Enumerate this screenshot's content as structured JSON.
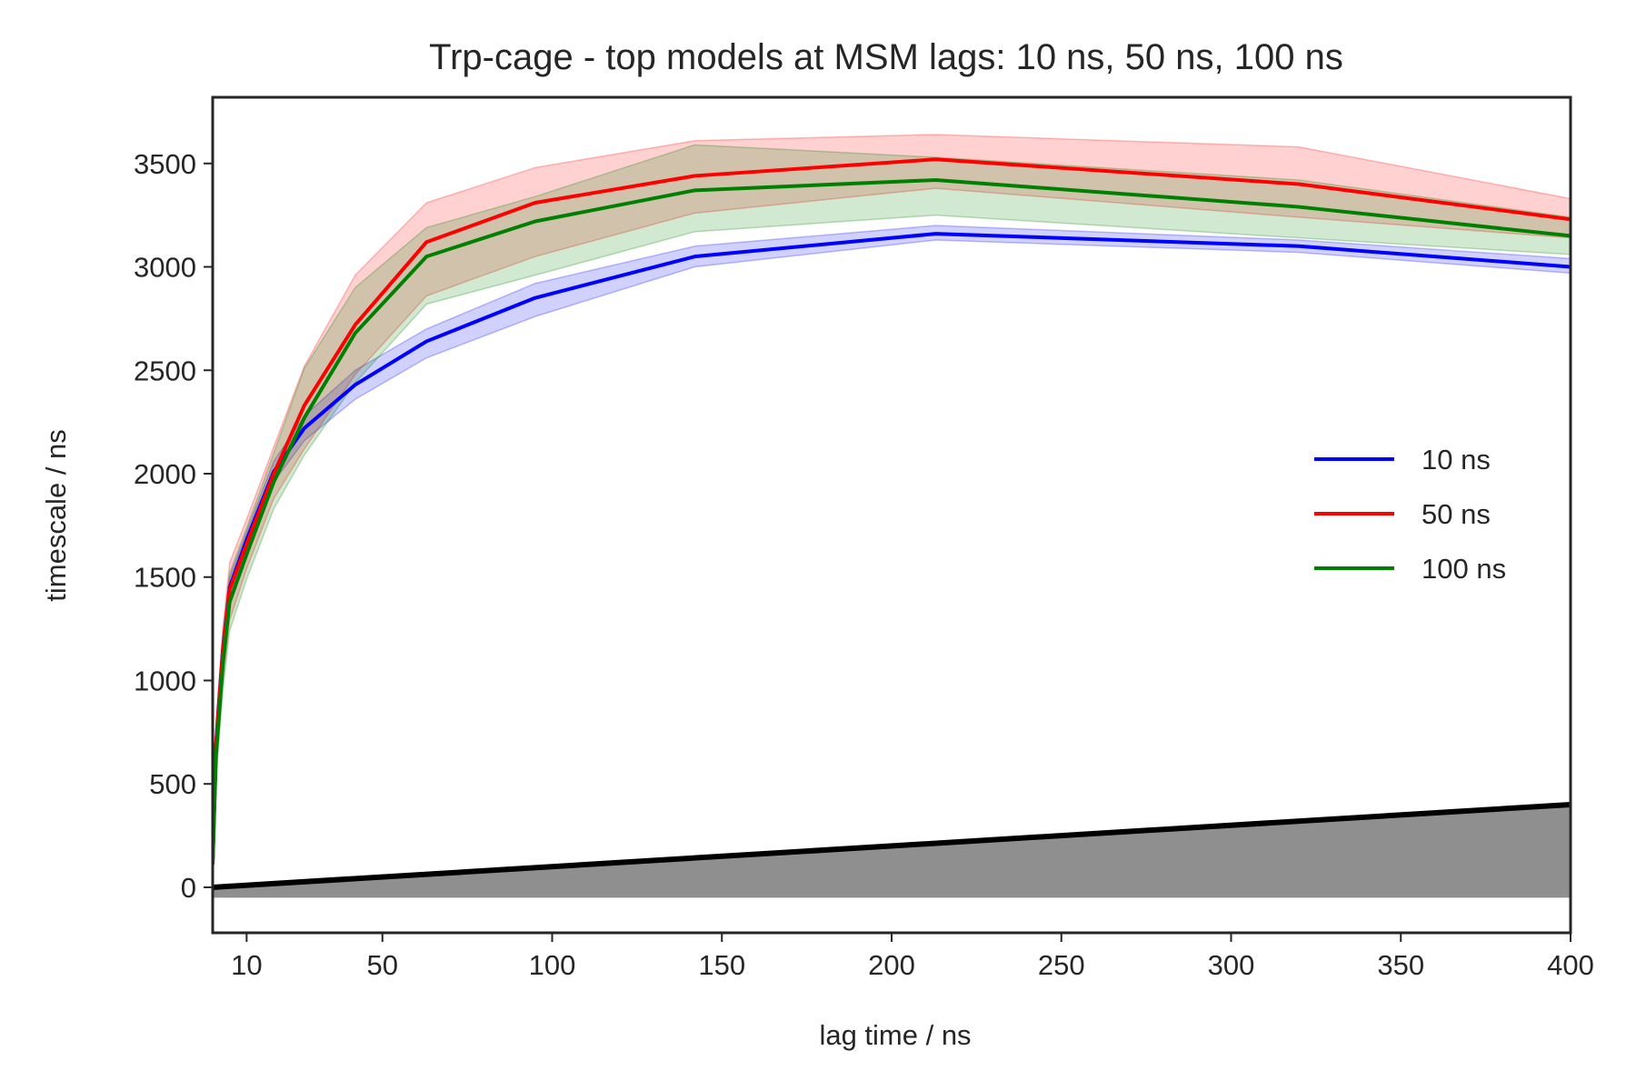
{
  "chart_data": {
    "type": "line",
    "title": "Trp-cage - top models at MSM lags: 10 ns, 50 ns, 100 ns",
    "xlabel": "lag time / ns",
    "ylabel": "timescale / ns",
    "xlim": [
      0,
      400
    ],
    "ylim": [
      -220,
      3820
    ],
    "xticks": [
      10,
      50,
      100,
      150,
      200,
      250,
      300,
      350,
      400
    ],
    "yticks": [
      0,
      500,
      1000,
      1500,
      2000,
      2500,
      3000,
      3500
    ],
    "grid": false,
    "legend_position": "right",
    "x": [
      0,
      1,
      3,
      5,
      10,
      18,
      27,
      42,
      63,
      95,
      142,
      213,
      320,
      400
    ],
    "series": [
      {
        "name": "10 ns",
        "color": "#0000ff",
        "values": [
          120,
          700,
          1150,
          1450,
          1680,
          2010,
          2220,
          2430,
          2640,
          2850,
          3050,
          3160,
          3100,
          3000
        ],
        "lower": [
          110,
          660,
          1100,
          1400,
          1630,
          1960,
          2160,
          2360,
          2560,
          2760,
          3000,
          3130,
          3070,
          2970
        ],
        "upper": [
          130,
          740,
          1200,
          1500,
          1720,
          2060,
          2280,
          2500,
          2700,
          2920,
          3100,
          3200,
          3130,
          3040
        ]
      },
      {
        "name": "50 ns",
        "color": "#ff0000",
        "values": [
          120,
          690,
          1140,
          1440,
          1660,
          2000,
          2330,
          2720,
          3120,
          3310,
          3440,
          3520,
          3400,
          3230
        ],
        "lower": [
          100,
          560,
          990,
          1290,
          1540,
          1880,
          2120,
          2480,
          2860,
          3050,
          3260,
          3380,
          3240,
          3140
        ],
        "upper": [
          140,
          800,
          1260,
          1570,
          1780,
          2130,
          2520,
          2960,
          3310,
          3480,
          3610,
          3640,
          3580,
          3330
        ]
      },
      {
        "name": "100 ns",
        "color": "#008000",
        "values": [
          110,
          640,
          1080,
          1380,
          1610,
          1960,
          2270,
          2680,
          3050,
          3220,
          3370,
          3420,
          3290,
          3150
        ],
        "lower": [
          90,
          520,
          950,
          1240,
          1490,
          1830,
          2090,
          2440,
          2820,
          2960,
          3170,
          3250,
          3140,
          3060
        ],
        "upper": [
          130,
          760,
          1220,
          1520,
          1740,
          2100,
          2510,
          2900,
          3190,
          3340,
          3590,
          3530,
          3420,
          3240
        ]
      }
    ],
    "reference": {
      "description": "y = x line with shaded area below",
      "color": "#000000",
      "fill_color": "#808080",
      "x": [
        0,
        400
      ],
      "y": [
        0,
        400
      ],
      "fill_lower": -50
    }
  }
}
